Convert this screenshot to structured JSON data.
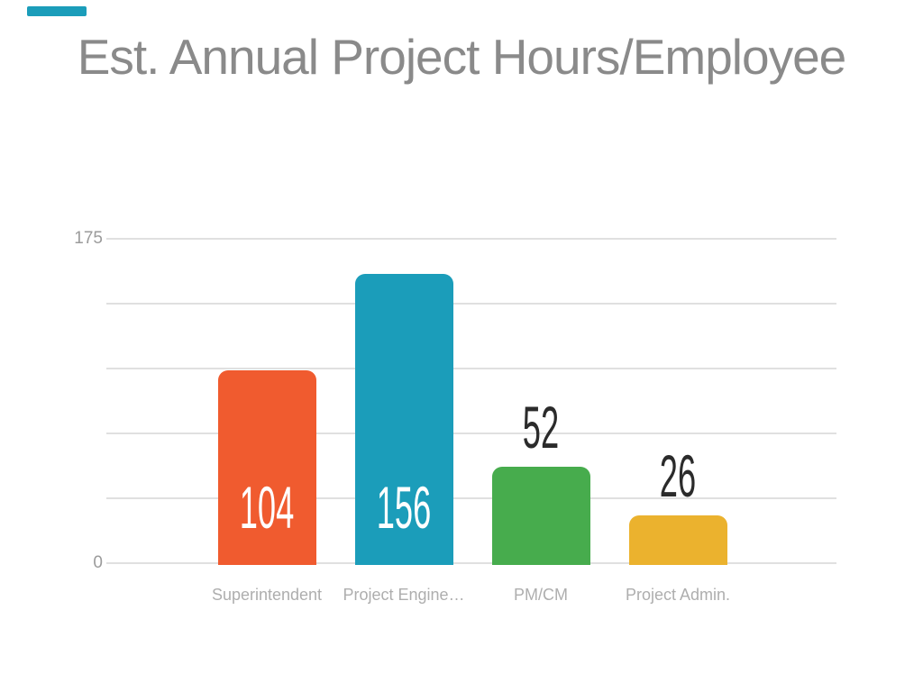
{
  "slide": {
    "title": "Est. Annual Project Hours/Employee"
  },
  "decor": {
    "accent_bar_color": "#1B9DBA"
  },
  "chart_data": {
    "type": "bar",
    "title": "Est. Annual Project Hours/Employee",
    "categories": [
      "Superintendent",
      "Project Engine…",
      "PM/CM",
      "Project Admin."
    ],
    "values": [
      104,
      156,
      52,
      26
    ],
    "value_labels": [
      "104",
      "156",
      "52",
      "26"
    ],
    "bar_colors": [
      "#F05B2F",
      "#1B9DBA",
      "#47AC4D",
      "#EBB22E"
    ],
    "value_label_colors": [
      "#FFFFFF",
      "#FFFFFF",
      "#2B2B2B",
      "#2B2B2B"
    ],
    "value_label_position": [
      "inside-bottom",
      "inside-bottom",
      "above",
      "above"
    ],
    "xlabel": "",
    "ylabel": "",
    "ylim": [
      0,
      175
    ],
    "gridline_values": [
      0,
      35,
      70,
      105,
      140,
      175
    ],
    "ytick_labels_shown": [
      {
        "value": 175,
        "label": "175"
      },
      {
        "value": 0,
        "label": "0"
      }
    ],
    "grid": "horizontal",
    "legend": "none"
  },
  "colors": {
    "background": "#FFFFFF",
    "title_text": "#8A8A8A",
    "gridline": "#E0E0E0",
    "ytick_text": "#9B9B9B",
    "category_text": "#AEAEAE"
  }
}
